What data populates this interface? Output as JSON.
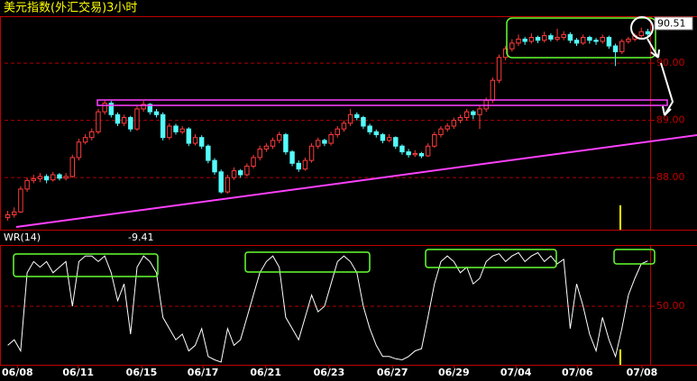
{
  "chart_data": [
    {
      "type": "candlestick",
      "title": "美元指数(外汇交易)3小时",
      "xlim": [
        0,
        100
      ],
      "ylim": [
        87.09,
        90.82
      ],
      "yticks": [
        {
          "value": 88,
          "label": "88.00"
        },
        {
          "value": 89,
          "label": "89.00"
        },
        {
          "value": 90,
          "label": "90.00"
        }
      ],
      "grid": true,
      "grid_color": "#b00000",
      "up_color": "#ff3c3c",
      "down_color": "#54fcfc",
      "ohlc": [
        [
          87.3,
          87.42,
          87.25,
          87.35
        ],
        [
          87.35,
          87.48,
          87.3,
          87.4
        ],
        [
          87.4,
          87.85,
          87.38,
          87.8
        ],
        [
          87.8,
          88.0,
          87.75,
          87.95
        ],
        [
          87.95,
          88.05,
          87.9,
          87.98
        ],
        [
          87.98,
          88.08,
          87.92,
          88.02
        ],
        [
          88.02,
          88.06,
          87.9,
          87.96
        ],
        [
          87.96,
          88.1,
          87.93,
          88.05
        ],
        [
          88.05,
          88.08,
          87.95,
          87.99
        ],
        [
          87.99,
          88.08,
          87.95,
          88.02
        ],
        [
          88.02,
          88.4,
          88.0,
          88.35
        ],
        [
          88.35,
          88.68,
          88.3,
          88.62
        ],
        [
          88.62,
          88.76,
          88.58,
          88.7
        ],
        [
          88.7,
          88.86,
          88.65,
          88.8
        ],
        [
          88.8,
          89.2,
          88.76,
          89.15
        ],
        [
          89.15,
          89.36,
          89.1,
          89.3
        ],
        [
          89.3,
          89.34,
          89.05,
          89.1
        ],
        [
          89.1,
          89.14,
          88.9,
          88.95
        ],
        [
          88.95,
          89.1,
          88.9,
          89.05
        ],
        [
          89.05,
          89.08,
          88.8,
          88.85
        ],
        [
          88.85,
          89.25,
          88.82,
          89.2
        ],
        [
          89.2,
          89.34,
          89.15,
          89.28
        ],
        [
          89.28,
          89.3,
          89.1,
          89.15
        ],
        [
          89.15,
          89.2,
          89.05,
          89.1
        ],
        [
          89.1,
          89.14,
          88.65,
          88.7
        ],
        [
          88.7,
          88.95,
          88.66,
          88.9
        ],
        [
          88.9,
          88.94,
          88.75,
          88.8
        ],
        [
          88.8,
          88.9,
          88.76,
          88.85
        ],
        [
          88.85,
          88.88,
          88.55,
          88.6
        ],
        [
          88.6,
          88.76,
          88.56,
          88.7
        ],
        [
          88.7,
          88.74,
          88.5,
          88.55
        ],
        [
          88.55,
          88.58,
          88.25,
          88.3
        ],
        [
          88.3,
          88.34,
          88.05,
          88.1
        ],
        [
          88.1,
          88.14,
          87.72,
          87.75
        ],
        [
          87.75,
          88.05,
          87.72,
          88.0
        ],
        [
          88.0,
          88.18,
          87.96,
          88.12
        ],
        [
          88.12,
          88.15,
          88.0,
          88.05
        ],
        [
          88.05,
          88.25,
          88.02,
          88.2
        ],
        [
          88.2,
          88.4,
          88.16,
          88.35
        ],
        [
          88.35,
          88.56,
          88.3,
          88.5
        ],
        [
          88.5,
          88.6,
          88.45,
          88.55
        ],
        [
          88.55,
          88.7,
          88.5,
          88.65
        ],
        [
          88.65,
          88.8,
          88.6,
          88.75
        ],
        [
          88.75,
          88.78,
          88.4,
          88.45
        ],
        [
          88.45,
          88.48,
          88.2,
          88.25
        ],
        [
          88.25,
          88.3,
          88.1,
          88.15
        ],
        [
          88.15,
          88.35,
          88.12,
          88.3
        ],
        [
          88.3,
          88.6,
          88.26,
          88.55
        ],
        [
          88.55,
          88.7,
          88.5,
          88.65
        ],
        [
          88.65,
          88.68,
          88.55,
          88.6
        ],
        [
          88.6,
          88.8,
          88.56,
          88.75
        ],
        [
          88.75,
          88.9,
          88.7,
          88.85
        ],
        [
          88.85,
          89.0,
          88.8,
          88.95
        ],
        [
          88.95,
          89.2,
          88.9,
          89.1
        ],
        [
          89.1,
          89.14,
          89.0,
          89.05
        ],
        [
          89.05,
          89.08,
          88.85,
          88.9
        ],
        [
          88.9,
          88.94,
          88.75,
          88.8
        ],
        [
          88.8,
          88.84,
          88.7,
          88.75
        ],
        [
          88.75,
          88.78,
          88.6,
          88.65
        ],
        [
          88.65,
          88.76,
          88.62,
          88.7
        ],
        [
          88.7,
          88.72,
          88.5,
          88.55
        ],
        [
          88.55,
          88.58,
          88.4,
          88.45
        ],
        [
          88.45,
          88.5,
          88.35,
          88.4
        ],
        [
          88.4,
          88.48,
          88.36,
          88.42
        ],
        [
          88.42,
          88.45,
          88.34,
          88.38
        ],
        [
          88.38,
          88.6,
          88.36,
          88.55
        ],
        [
          88.55,
          88.8,
          88.52,
          88.75
        ],
        [
          88.75,
          88.9,
          88.7,
          88.85
        ],
        [
          88.85,
          88.95,
          88.8,
          88.9
        ],
        [
          88.9,
          89.05,
          88.85,
          89.0
        ],
        [
          89.0,
          89.1,
          88.95,
          89.05
        ],
        [
          89.05,
          89.2,
          89.0,
          89.15
        ],
        [
          89.15,
          89.18,
          89.02,
          89.1
        ],
        [
          89.1,
          89.25,
          88.85,
          89.2
        ],
        [
          89.2,
          89.4,
          89.15,
          89.35
        ],
        [
          89.35,
          89.75,
          89.3,
          89.7
        ],
        [
          89.7,
          90.15,
          89.65,
          90.1
        ],
        [
          90.1,
          90.3,
          90.05,
          90.25
        ],
        [
          90.25,
          90.42,
          90.2,
          90.35
        ],
        [
          90.35,
          90.5,
          90.3,
          90.42
        ],
        [
          90.42,
          90.46,
          90.32,
          90.38
        ],
        [
          90.38,
          90.52,
          90.34,
          90.45
        ],
        [
          90.45,
          90.48,
          90.35,
          90.4
        ],
        [
          90.4,
          90.55,
          90.36,
          90.48
        ],
        [
          90.48,
          90.52,
          90.38,
          90.42
        ],
        [
          90.42,
          90.6,
          90.38,
          90.45
        ],
        [
          90.45,
          90.56,
          90.4,
          90.5
        ],
        [
          90.5,
          90.54,
          90.35,
          90.4
        ],
        [
          90.4,
          90.44,
          90.3,
          90.35
        ],
        [
          90.35,
          90.5,
          90.32,
          90.45
        ],
        [
          90.45,
          90.48,
          90.34,
          90.4
        ],
        [
          90.4,
          90.44,
          90.32,
          90.38
        ],
        [
          90.38,
          90.5,
          90.34,
          90.45
        ],
        [
          90.45,
          90.48,
          90.25,
          90.3
        ],
        [
          90.3,
          90.34,
          89.95,
          90.2
        ],
        [
          90.2,
          90.42,
          90.16,
          90.38
        ],
        [
          90.38,
          90.46,
          90.34,
          90.42
        ],
        [
          90.42,
          90.52,
          90.38,
          90.48
        ],
        [
          90.48,
          90.62,
          90.44,
          90.55
        ],
        [
          90.55,
          90.6,
          90.46,
          90.51
        ]
      ]
    },
    {
      "type": "line",
      "title": "WR(14)",
      "xlim": [
        0,
        100
      ],
      "ylim": [
        -100,
        0
      ],
      "yticks": [
        {
          "value": -50,
          "label": "50.00"
        }
      ],
      "xticks": [
        {
          "value": 2,
          "label": "06/08"
        },
        {
          "value": 11.4,
          "label": "06/11"
        },
        {
          "value": 21.2,
          "label": "06/15"
        },
        {
          "value": 30.7,
          "label": "06/17"
        },
        {
          "value": 40.4,
          "label": "06/21"
        },
        {
          "value": 50.2,
          "label": "06/23"
        },
        {
          "value": 60,
          "label": "06/27"
        },
        {
          "value": 69.5,
          "label": "06/29"
        },
        {
          "value": 79.1,
          "label": "07/04"
        },
        {
          "value": 88.6,
          "label": "07/06"
        },
        {
          "value": 98.6,
          "label": "07/08"
        }
      ],
      "grid": true,
      "grid_color": "#b00000",
      "series": [
        {
          "name": "WR(14)",
          "color": "#ffffff",
          "values": [
            -85,
            -80,
            -90,
            -20,
            -10,
            -15,
            -10,
            -20,
            -15,
            -10,
            -50,
            -10,
            -5,
            -5,
            -10,
            -5,
            -20,
            -45,
            -30,
            -75,
            -15,
            -5,
            -10,
            -20,
            -60,
            -70,
            -80,
            -75,
            -90,
            -85,
            -70,
            -95,
            -98,
            -100,
            -70,
            -85,
            -80,
            -60,
            -40,
            -20,
            -10,
            -5,
            -15,
            -60,
            -70,
            -80,
            -60,
            -40,
            -55,
            -50,
            -30,
            -10,
            -5,
            -10,
            -20,
            -50,
            -70,
            -85,
            -95,
            -95,
            -97,
            -98,
            -95,
            -90,
            -88,
            -60,
            -30,
            -10,
            -5,
            -10,
            -20,
            -15,
            -30,
            -25,
            -10,
            -5,
            -3,
            -10,
            -5,
            -2,
            -10,
            -5,
            -2,
            -10,
            -5,
            -12,
            -8,
            -70,
            -30,
            -50,
            -75,
            -90,
            -60,
            -80,
            -95,
            -70,
            -40,
            -25,
            -12,
            -9.41
          ]
        }
      ]
    }
  ]
}
